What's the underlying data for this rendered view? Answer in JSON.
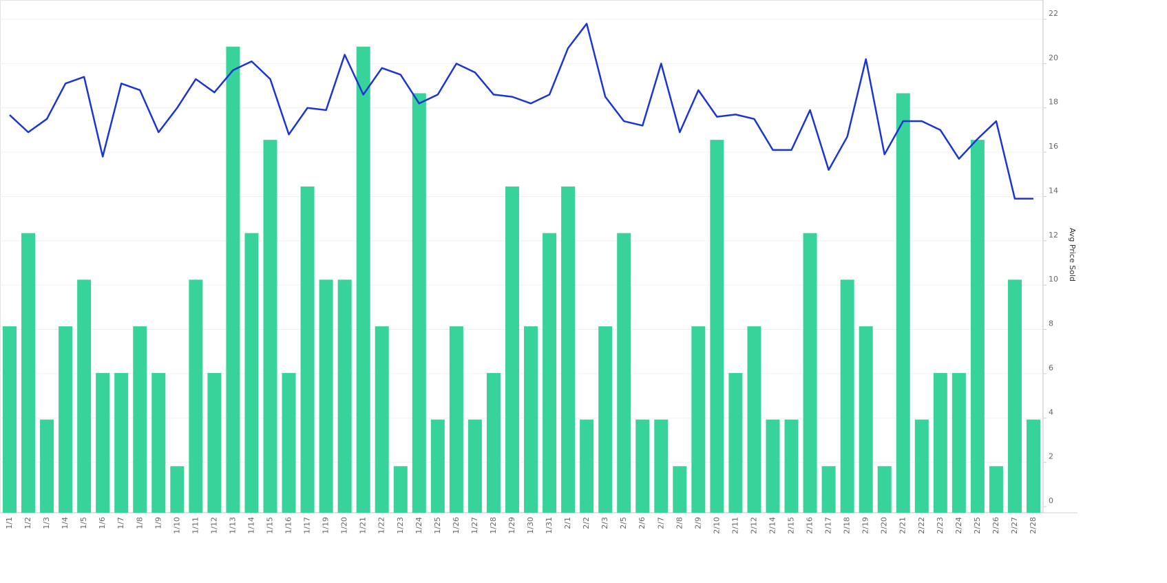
{
  "chart_data": {
    "type": "bar-line",
    "y_label": "Avg Price Sold",
    "categories": [
      "1/1",
      "1/2",
      "1/3",
      "1/4",
      "1/5",
      "1/6",
      "1/7",
      "1/8",
      "1/9",
      "1/10",
      "1/11",
      "1/12",
      "1/13",
      "1/14",
      "1/15",
      "1/16",
      "1/17",
      "1/19",
      "1/20",
      "1/21",
      "1/22",
      "1/23",
      "1/24",
      "1/25",
      "1/26",
      "1/27",
      "1/28",
      "1/29",
      "1/30",
      "1/31",
      "2/1",
      "2/2",
      "2/3",
      "2/5",
      "2/6",
      "2/7",
      "2/8",
      "2/9",
      "2/10",
      "2/11",
      "2/12",
      "2/14",
      "2/15",
      "2/16",
      "2/17",
      "2/18",
      "2/19",
      "2/20",
      "2/21",
      "2/22",
      "2/23",
      "2/24",
      "2/25",
      "2/26",
      "2/27",
      "2/28"
    ],
    "series": [
      {
        "type": "bar",
        "axis": "y2",
        "color": "#38d39a",
        "values": [
          4,
          6,
          2,
          4,
          5,
          3,
          3,
          4,
          3,
          1,
          5,
          3,
          10,
          6,
          8,
          3,
          7,
          5,
          5,
          10,
          4,
          1,
          9,
          2,
          4,
          2,
          3,
          7,
          4,
          6,
          7,
          2,
          4,
          6,
          2,
          2,
          1,
          4,
          8,
          3,
          4,
          2,
          2,
          6,
          1,
          5,
          4,
          1,
          9,
          2,
          3,
          3,
          8,
          1,
          5,
          2
        ]
      },
      {
        "type": "line",
        "name": "Avg Price Sold",
        "color": "#1a35d4",
        "values": [
          17.68,
          16.9,
          17.5,
          19.1,
          19.4,
          15.8,
          19.1,
          18.8,
          16.9,
          18.0,
          19.3,
          18.7,
          19.7,
          20.1,
          19.3,
          16.8,
          18.0,
          17.9,
          20.4,
          18.6,
          19.8,
          19.5,
          18.2,
          18.6,
          20.0,
          19.6,
          18.6,
          18.5,
          18.2,
          18.6,
          20.7,
          21.8,
          18.5,
          17.4,
          17.2,
          20.0,
          16.9,
          18.8,
          17.6,
          17.7,
          17.5,
          16.1,
          16.1,
          17.9,
          15.2,
          16.7,
          20.2,
          15.9,
          17.4,
          17.4,
          17.0,
          15.7,
          16.6,
          17.4,
          13.9,
          13.9
        ]
      }
    ],
    "ylim": [
      -0.28,
      22.87
    ],
    "yticks": [
      0,
      2,
      4,
      6,
      8,
      10,
      12,
      14,
      16,
      18,
      20,
      22
    ],
    "y2lim": [
      0,
      11
    ],
    "grid": true
  }
}
